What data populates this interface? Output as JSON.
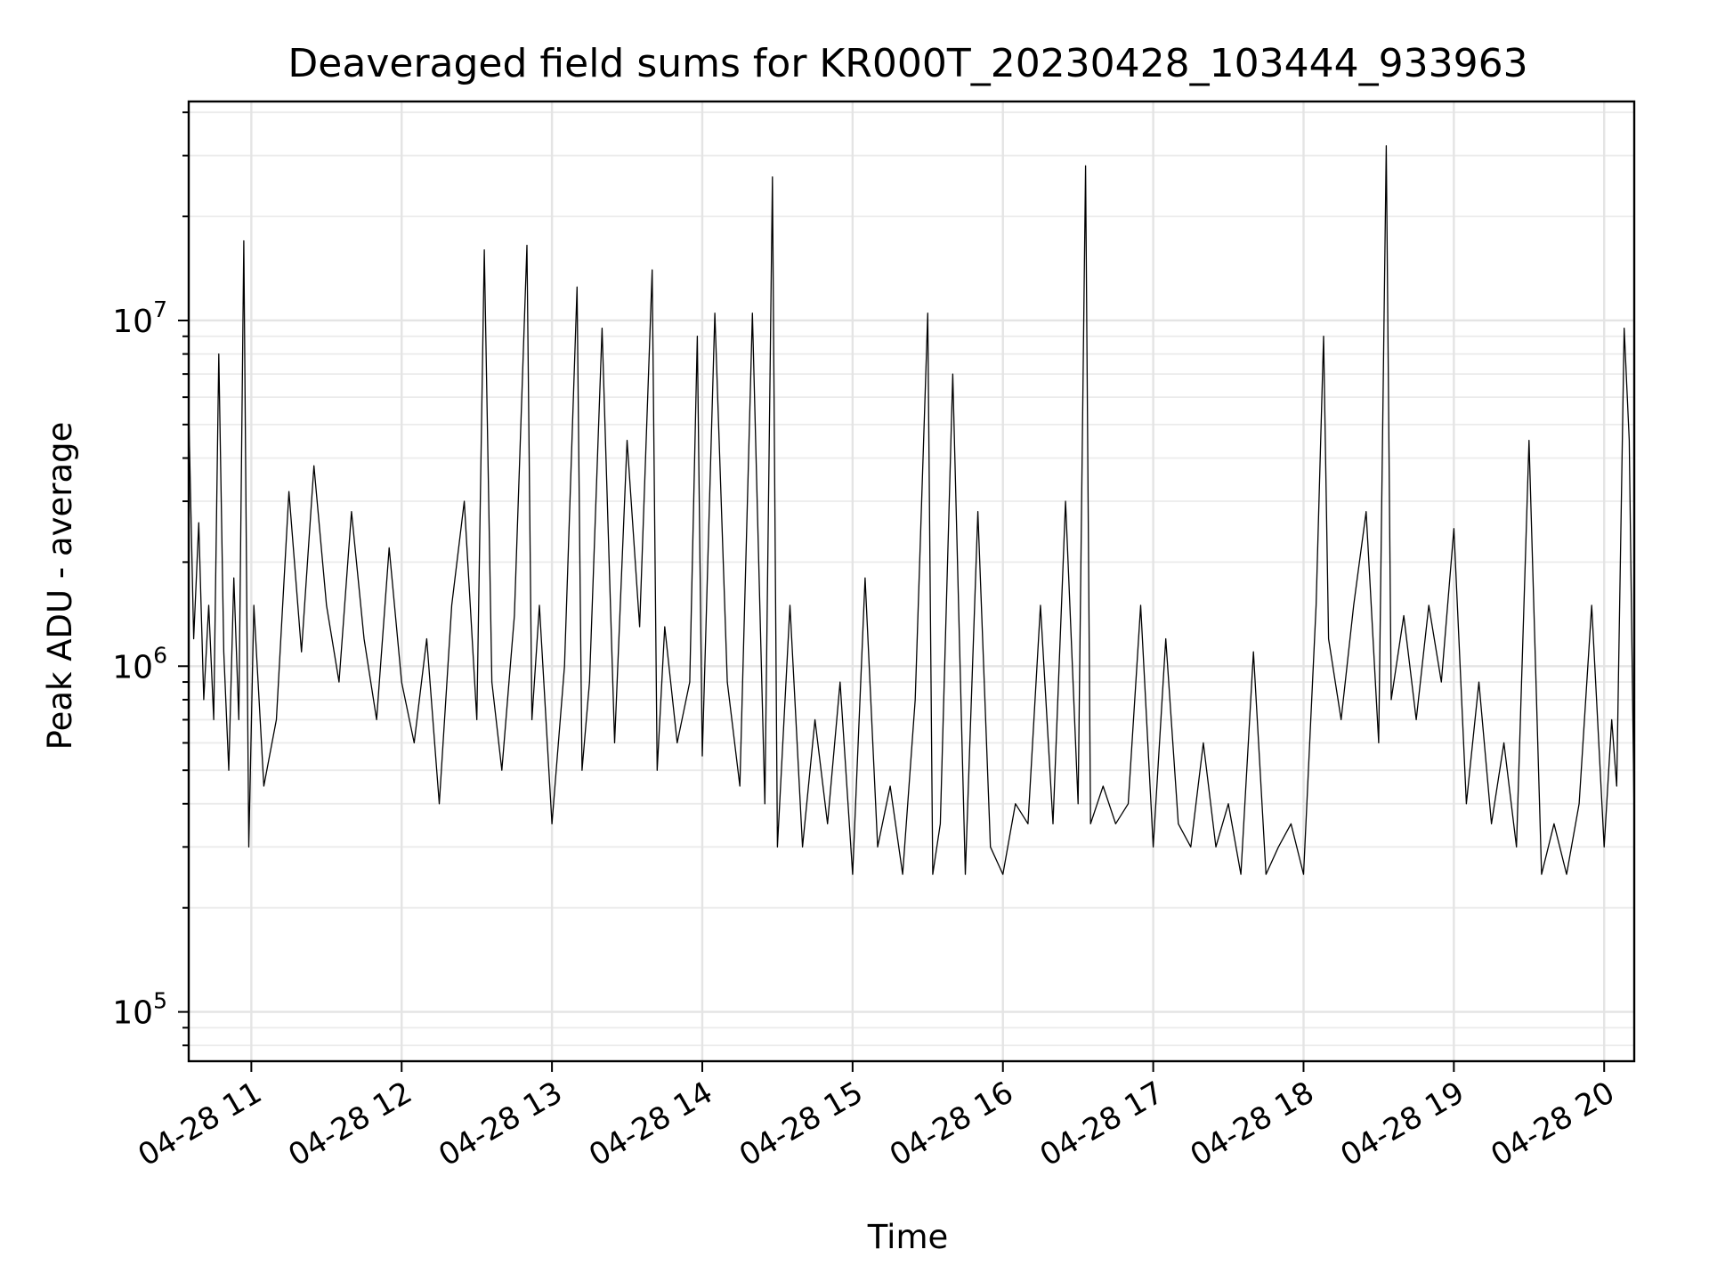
{
  "chart_data": {
    "type": "line",
    "title": "Deaveraged field sums for KR000T_20230428_103444_933963",
    "xlabel": "Time",
    "ylabel": "Peak ADU - average",
    "yscale": "log",
    "ylim": [
      72000,
      43000000
    ],
    "xlim": [
      "2023-04-28 10:35:00",
      "2023-04-28 20:12:00"
    ],
    "x_ticks": [
      {
        "value": "2023-04-28 11:00",
        "label": "04-28 11"
      },
      {
        "value": "2023-04-28 12:00",
        "label": "04-28 12"
      },
      {
        "value": "2023-04-28 13:00",
        "label": "04-28 13"
      },
      {
        "value": "2023-04-28 14:00",
        "label": "04-28 14"
      },
      {
        "value": "2023-04-28 15:00",
        "label": "04-28 15"
      },
      {
        "value": "2023-04-28 16:00",
        "label": "04-28 16"
      },
      {
        "value": "2023-04-28 17:00",
        "label": "04-28 17"
      },
      {
        "value": "2023-04-28 18:00",
        "label": "04-28 18"
      },
      {
        "value": "2023-04-28 19:00",
        "label": "04-28 19"
      },
      {
        "value": "2023-04-28 20:00",
        "label": "04-28 20"
      }
    ],
    "y_ticks": [
      {
        "value": 100000,
        "base": "10",
        "exp": "5"
      },
      {
        "value": 1000000,
        "base": "10",
        "exp": "6"
      },
      {
        "value": 10000000,
        "base": "10",
        "exp": "7"
      }
    ],
    "grid": true,
    "line_color": "#000000",
    "series": [
      {
        "x": [
          "10:35",
          "10:37",
          "10:39",
          "10:41",
          "10:43",
          "10:45",
          "10:47",
          "10:49",
          "10:51",
          "10:53",
          "10:55",
          "10:57",
          "10:59",
          "11:01",
          "11:05",
          "11:10",
          "11:15",
          "11:20",
          "11:25",
          "11:30",
          "11:35",
          "11:40",
          "11:45",
          "11:50",
          "11:55",
          "12:00",
          "12:05",
          "12:10",
          "12:15",
          "12:20",
          "12:25",
          "12:30",
          "12:33",
          "12:36",
          "12:40",
          "12:45",
          "12:50",
          "12:52",
          "12:55",
          "13:00",
          "13:05",
          "13:10",
          "13:12",
          "13:15",
          "13:20",
          "13:25",
          "13:30",
          "13:35",
          "13:40",
          "13:42",
          "13:45",
          "13:50",
          "13:55",
          "13:58",
          "14:00",
          "14:05",
          "14:10",
          "14:15",
          "14:20",
          "14:25",
          "14:28",
          "14:30",
          "14:35",
          "14:40",
          "14:45",
          "14:50",
          "14:55",
          "15:00",
          "15:05",
          "15:10",
          "15:15",
          "15:20",
          "15:25",
          "15:30",
          "15:32",
          "15:35",
          "15:40",
          "15:45",
          "15:50",
          "15:55",
          "16:00",
          "16:05",
          "16:10",
          "16:15",
          "16:20",
          "16:25",
          "16:30",
          "16:33",
          "16:35",
          "16:40",
          "16:45",
          "16:50",
          "16:55",
          "17:00",
          "17:05",
          "17:10",
          "17:15",
          "17:20",
          "17:25",
          "17:30",
          "17:35",
          "17:40",
          "17:45",
          "17:50",
          "17:55",
          "18:00",
          "18:05",
          "18:08",
          "18:10",
          "18:15",
          "18:20",
          "18:25",
          "18:30",
          "18:33",
          "18:35",
          "18:40",
          "18:45",
          "18:50",
          "18:55",
          "19:00",
          "19:05",
          "19:10",
          "19:15",
          "19:20",
          "19:25",
          "19:30",
          "19:35",
          "19:40",
          "19:45",
          "19:50",
          "19:55",
          "20:00",
          "20:03",
          "20:05",
          "20:08",
          "20:10",
          "20:12"
        ],
        "y": [
          5500000,
          1200000,
          2600000,
          800000,
          1500000,
          700000,
          8000000,
          1100000,
          500000,
          1800000,
          700000,
          17000000,
          300000,
          1500000,
          450000,
          700000,
          3200000,
          1100000,
          3800000,
          1500000,
          900000,
          2800000,
          1200000,
          700000,
          2200000,
          900000,
          600000,
          1200000,
          400000,
          1500000,
          3000000,
          700000,
          16000000,
          900000,
          500000,
          1400000,
          16500000,
          700000,
          1500000,
          350000,
          1000000,
          12500000,
          500000,
          900000,
          9500000,
          600000,
          4500000,
          1300000,
          14000000,
          500000,
          1300000,
          600000,
          900000,
          9000000,
          550000,
          10500000,
          900000,
          450000,
          10500000,
          400000,
          26000000,
          300000,
          1500000,
          300000,
          700000,
          350000,
          900000,
          250000,
          1800000,
          300000,
          450000,
          250000,
          800000,
          10500000,
          250000,
          350000,
          7000000,
          250000,
          2800000,
          300000,
          250000,
          400000,
          350000,
          1500000,
          350000,
          3000000,
          400000,
          28000000,
          350000,
          450000,
          350000,
          400000,
          1500000,
          300000,
          1200000,
          350000,
          300000,
          600000,
          300000,
          400000,
          250000,
          1100000,
          250000,
          300000,
          350000,
          250000,
          1500000,
          9000000,
          1200000,
          700000,
          1500000,
          2800000,
          600000,
          32000000,
          800000,
          1400000,
          700000,
          1500000,
          900000,
          2500000,
          400000,
          900000,
          350000,
          600000,
          300000,
          4500000,
          250000,
          350000,
          250000,
          400000,
          1500000,
          300000,
          700000,
          450000,
          9500000,
          4500000,
          350000
        ]
      }
    ]
  }
}
